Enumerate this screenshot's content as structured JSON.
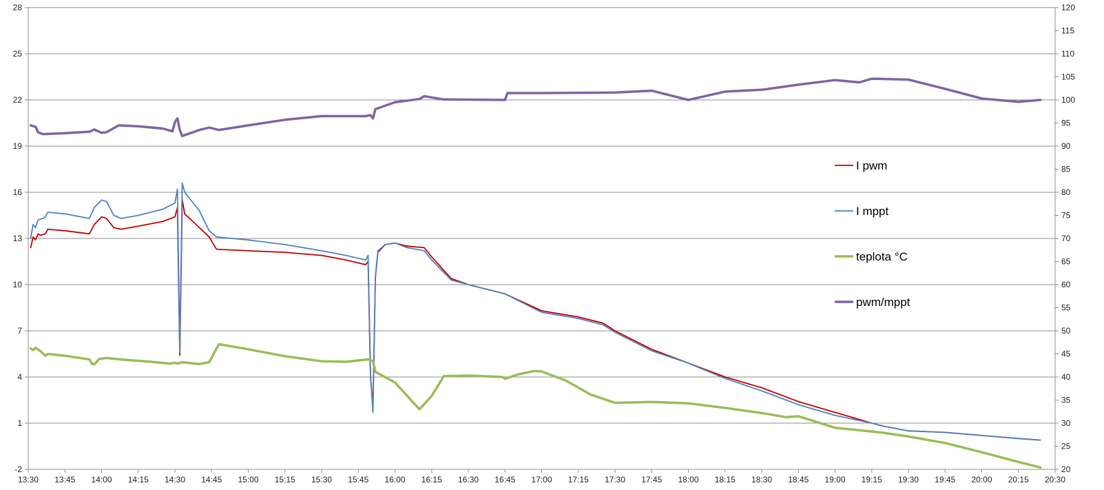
{
  "chart_data": {
    "type": "line",
    "title": "",
    "grid": true,
    "legend_position": "right",
    "x_axis": {
      "unit": "time",
      "min": "13:30",
      "max": "20:30",
      "tick_labels": [
        "13:30",
        "13:45",
        "14:00",
        "14:15",
        "14:30",
        "14:45",
        "15:00",
        "15:15",
        "15:30",
        "15:45",
        "16:00",
        "16:15",
        "16:30",
        "16:45",
        "17:00",
        "17:15",
        "17:30",
        "17:45",
        "18:00",
        "18:15",
        "18:30",
        "18:45",
        "19:00",
        "19:15",
        "19:30",
        "19:45",
        "20:00",
        "20:15",
        "20:30"
      ]
    },
    "y_left": {
      "min": -2,
      "max": 28,
      "tick_labels": [
        "28",
        "25",
        "22",
        "19",
        "16",
        "13",
        "10",
        "7",
        "4",
        "1",
        "-2"
      ]
    },
    "y_right": {
      "min": 20,
      "max": 120,
      "tick_labels": [
        "120",
        "115",
        "110",
        "105",
        "100",
        "95",
        "90",
        "85",
        "80",
        "75",
        "70",
        "65",
        "60",
        "55",
        "50",
        "45",
        "40",
        "35",
        "30",
        "25",
        "20"
      ]
    },
    "series": [
      {
        "name": "I pwm",
        "axis": "left",
        "color": "#C00000",
        "line_width": 1.8,
        "points": [
          [
            "13:31",
            12.4
          ],
          [
            "13:32",
            13.1
          ],
          [
            "13:33",
            12.9
          ],
          [
            "13:34",
            13.3
          ],
          [
            "13:35",
            13.2
          ],
          [
            "13:37",
            13.3
          ],
          [
            "13:38",
            13.6
          ],
          [
            "13:45",
            13.5
          ],
          [
            "13:55",
            13.3
          ],
          [
            "13:57",
            13.9
          ],
          [
            "14:00",
            14.4
          ],
          [
            "14:02",
            14.3
          ],
          [
            "14:05",
            13.7
          ],
          [
            "14:08",
            13.6
          ],
          [
            "14:15",
            13.8
          ],
          [
            "14:25",
            14.1
          ],
          [
            "14:30",
            14.4
          ],
          [
            "14:31",
            15.0
          ],
          [
            "14:32",
            5.4
          ],
          [
            "14:33",
            15.5
          ],
          [
            "14:34",
            14.6
          ],
          [
            "14:40",
            13.7
          ],
          [
            "14:44",
            13.1
          ],
          [
            "14:47",
            12.3
          ],
          [
            "15:00",
            12.2
          ],
          [
            "15:15",
            12.1
          ],
          [
            "15:30",
            11.9
          ],
          [
            "15:40",
            11.6
          ],
          [
            "15:48",
            11.3
          ],
          [
            "15:49",
            11.5
          ],
          [
            "15:50",
            4.0
          ],
          [
            "15:51",
            2.1
          ],
          [
            "15:52",
            10.5
          ],
          [
            "15:53",
            12.1
          ],
          [
            "15:56",
            12.6
          ],
          [
            "16:00",
            12.7
          ],
          [
            "16:05",
            12.5
          ],
          [
            "16:12",
            12.4
          ],
          [
            "16:15",
            11.8
          ],
          [
            "16:23",
            10.4
          ],
          [
            "16:30",
            10.0
          ],
          [
            "16:45",
            9.4
          ],
          [
            "17:00",
            8.3
          ],
          [
            "17:15",
            7.9
          ],
          [
            "17:25",
            7.5
          ],
          [
            "17:30",
            7.0
          ],
          [
            "17:45",
            5.8
          ],
          [
            "18:00",
            4.9
          ],
          [
            "18:15",
            4.0
          ],
          [
            "18:30",
            3.3
          ],
          [
            "18:45",
            2.4
          ],
          [
            "19:00",
            1.7
          ],
          [
            "19:15",
            1.0
          ],
          [
            "19:20",
            0.8
          ],
          [
            "19:30",
            0.5
          ],
          [
            "19:45",
            0.4
          ],
          [
            "20:00",
            0.2
          ],
          [
            "20:15",
            0.0
          ],
          [
            "20:24",
            -0.1
          ]
        ]
      },
      {
        "name": "I mppt",
        "axis": "left",
        "color": "#4F81BD",
        "line_width": 1.8,
        "points": [
          [
            "13:31",
            13.0
          ],
          [
            "13:32",
            13.9
          ],
          [
            "13:33",
            13.7
          ],
          [
            "13:34",
            14.2
          ],
          [
            "13:36",
            14.3
          ],
          [
            "13:37",
            14.4
          ],
          [
            "13:38",
            14.7
          ],
          [
            "13:45",
            14.6
          ],
          [
            "13:55",
            14.3
          ],
          [
            "13:57",
            15.0
          ],
          [
            "14:00",
            15.5
          ],
          [
            "14:02",
            15.4
          ],
          [
            "14:05",
            14.5
          ],
          [
            "14:08",
            14.3
          ],
          [
            "14:15",
            14.5
          ],
          [
            "14:25",
            14.9
          ],
          [
            "14:30",
            15.3
          ],
          [
            "14:31",
            16.2
          ],
          [
            "14:32",
            5.6
          ],
          [
            "14:33",
            16.6
          ],
          [
            "14:34",
            16.0
          ],
          [
            "14:40",
            14.8
          ],
          [
            "14:44",
            13.5
          ],
          [
            "14:47",
            13.1
          ],
          [
            "15:00",
            12.9
          ],
          [
            "15:15",
            12.6
          ],
          [
            "15:30",
            12.2
          ],
          [
            "15:40",
            11.9
          ],
          [
            "15:48",
            11.6
          ],
          [
            "15:49",
            11.9
          ],
          [
            "15:50",
            4.0
          ],
          [
            "15:51",
            1.7
          ],
          [
            "15:52",
            10.5
          ],
          [
            "15:53",
            12.2
          ],
          [
            "15:56",
            12.6
          ],
          [
            "16:00",
            12.7
          ],
          [
            "16:05",
            12.4
          ],
          [
            "16:12",
            12.2
          ],
          [
            "16:15",
            11.6
          ],
          [
            "16:23",
            10.3
          ],
          [
            "16:30",
            10.0
          ],
          [
            "16:45",
            9.4
          ],
          [
            "17:00",
            8.2
          ],
          [
            "17:15",
            7.8
          ],
          [
            "17:25",
            7.4
          ],
          [
            "17:30",
            6.9
          ],
          [
            "17:45",
            5.7
          ],
          [
            "18:00",
            4.9
          ],
          [
            "18:15",
            3.9
          ],
          [
            "18:30",
            3.1
          ],
          [
            "18:45",
            2.2
          ],
          [
            "19:00",
            1.5
          ],
          [
            "19:15",
            1.0
          ],
          [
            "19:20",
            0.8
          ],
          [
            "19:30",
            0.5
          ],
          [
            "19:45",
            0.4
          ],
          [
            "20:00",
            0.2
          ],
          [
            "20:15",
            0.0
          ],
          [
            "20:24",
            -0.1
          ]
        ]
      },
      {
        "name": "teplota °C",
        "axis": "right",
        "color": "#9BBB59",
        "line_width": 3.5,
        "points": [
          [
            "13:31",
            46.2
          ],
          [
            "13:32",
            45.8
          ],
          [
            "13:33",
            46.3
          ],
          [
            "13:35",
            45.6
          ],
          [
            "13:37",
            44.6
          ],
          [
            "13:38",
            45.0
          ],
          [
            "13:45",
            44.6
          ],
          [
            "13:55",
            43.8
          ],
          [
            "13:56",
            42.9
          ],
          [
            "13:57",
            42.7
          ],
          [
            "13:59",
            43.9
          ],
          [
            "14:02",
            44.1
          ],
          [
            "14:10",
            43.7
          ],
          [
            "14:20",
            43.3
          ],
          [
            "14:28",
            42.9
          ],
          [
            "14:30",
            43.1
          ],
          [
            "14:31",
            42.9
          ],
          [
            "14:33",
            43.2
          ],
          [
            "14:40",
            42.8
          ],
          [
            "14:44",
            43.2
          ],
          [
            "14:48",
            47.1
          ],
          [
            "15:00",
            46.0
          ],
          [
            "15:15",
            44.5
          ],
          [
            "15:30",
            43.4
          ],
          [
            "15:40",
            43.3
          ],
          [
            "15:49",
            43.8
          ],
          [
            "15:51",
            43.5
          ],
          [
            "15:52",
            41.1
          ],
          [
            "16:00",
            38.8
          ],
          [
            "16:10",
            33.0
          ],
          [
            "16:15",
            35.9
          ],
          [
            "16:20",
            40.2
          ],
          [
            "16:30",
            40.3
          ],
          [
            "16:44",
            40.0
          ],
          [
            "16:45",
            39.6
          ],
          [
            "16:50",
            40.5
          ],
          [
            "16:57",
            41.3
          ],
          [
            "17:00",
            41.2
          ],
          [
            "17:10",
            39.2
          ],
          [
            "17:20",
            36.2
          ],
          [
            "17:30",
            34.4
          ],
          [
            "17:45",
            34.6
          ],
          [
            "18:00",
            34.3
          ],
          [
            "18:15",
            33.3
          ],
          [
            "18:30",
            32.2
          ],
          [
            "18:40",
            31.3
          ],
          [
            "18:45",
            31.5
          ],
          [
            "19:00",
            29.0
          ],
          [
            "19:15",
            28.2
          ],
          [
            "19:20",
            27.9
          ],
          [
            "19:30",
            27.1
          ],
          [
            "19:45",
            25.7
          ],
          [
            "20:00",
            23.7
          ],
          [
            "20:15",
            21.6
          ],
          [
            "20:24",
            20.4
          ]
        ]
      },
      {
        "name": "pwm/mppt",
        "axis": "right",
        "color": "#8064A2",
        "line_width": 3.5,
        "points": [
          [
            "13:31",
            94.5
          ],
          [
            "13:33",
            94.2
          ],
          [
            "13:34",
            93.0
          ],
          [
            "13:36",
            92.6
          ],
          [
            "13:45",
            92.8
          ],
          [
            "13:55",
            93.1
          ],
          [
            "13:57",
            93.6
          ],
          [
            "14:00",
            92.9
          ],
          [
            "14:02",
            93.0
          ],
          [
            "14:07",
            94.5
          ],
          [
            "14:15",
            94.3
          ],
          [
            "14:25",
            93.8
          ],
          [
            "14:29",
            93.2
          ],
          [
            "14:30",
            95.2
          ],
          [
            "14:31",
            96.0
          ],
          [
            "14:32",
            93.5
          ],
          [
            "14:33",
            92.2
          ],
          [
            "14:40",
            93.5
          ],
          [
            "14:44",
            94.0
          ],
          [
            "14:48",
            93.5
          ],
          [
            "15:00",
            94.5
          ],
          [
            "15:15",
            95.7
          ],
          [
            "15:30",
            96.5
          ],
          [
            "15:48",
            96.5
          ],
          [
            "15:50",
            96.7
          ],
          [
            "15:51",
            96.0
          ],
          [
            "15:52",
            98.0
          ],
          [
            "16:00",
            99.5
          ],
          [
            "16:10",
            100.2
          ],
          [
            "16:12",
            100.8
          ],
          [
            "16:20",
            100.1
          ],
          [
            "16:45",
            100.0
          ],
          [
            "16:46",
            101.5
          ],
          [
            "17:00",
            101.5
          ],
          [
            "17:30",
            101.6
          ],
          [
            "17:45",
            102.0
          ],
          [
            "18:00",
            100.0
          ],
          [
            "18:15",
            101.8
          ],
          [
            "18:30",
            102.2
          ],
          [
            "18:45",
            103.3
          ],
          [
            "19:00",
            104.3
          ],
          [
            "19:10",
            103.8
          ],
          [
            "19:15",
            104.6
          ],
          [
            "19:30",
            104.4
          ],
          [
            "19:45",
            102.4
          ],
          [
            "20:00",
            100.3
          ],
          [
            "20:15",
            99.6
          ],
          [
            "20:24",
            100.0
          ]
        ]
      }
    ]
  }
}
